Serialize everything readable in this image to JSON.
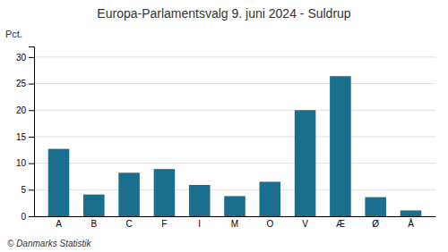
{
  "chart_data": {
    "type": "bar",
    "title": "Europa-Parlamentsvalg 9. juni 2024 - Suldrup",
    "categories": [
      "A",
      "B",
      "C",
      "F",
      "I",
      "M",
      "O",
      "V",
      "Æ",
      "Ø",
      "Å"
    ],
    "values": [
      12.7,
      4.1,
      8.2,
      8.9,
      5.9,
      3.8,
      6.5,
      20.0,
      26.4,
      3.6,
      1.1
    ],
    "color": "#1a6e8e",
    "ylabel": "Pct.",
    "footer": "© Danmarks Statistik",
    "ylim": [
      0,
      32
    ],
    "yticks": [
      0,
      5,
      10,
      15,
      20,
      25,
      30
    ],
    "grid": true
  }
}
